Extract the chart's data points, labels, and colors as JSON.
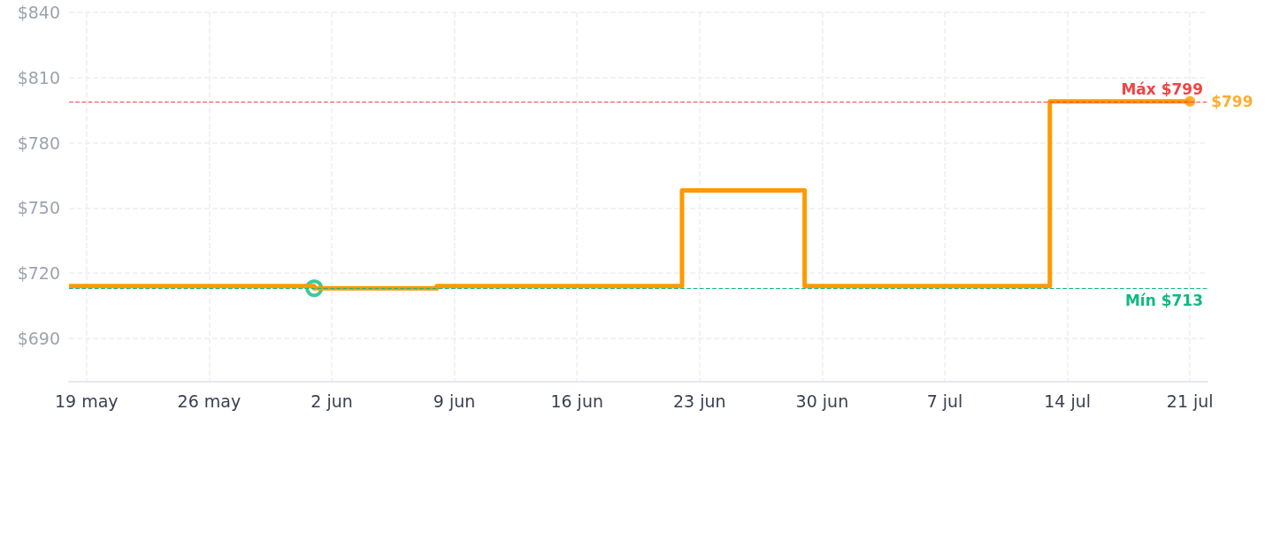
{
  "chart_data": {
    "type": "step",
    "x": [
      "--05-18",
      "--06-01",
      "--06-08",
      "--06-22",
      "--06-29",
      "--07-13",
      "--07-21"
    ],
    "series": [
      {
        "color": "#ff9900",
        "values": [
          714,
          713,
          714,
          758,
          714,
          799,
          799
        ],
        "marker": "none"
      },
      {
        "type": "scatter",
        "x": [
          "--06-01"
        ],
        "color": "#10b981",
        "values": [
          713
        ],
        "marker": "circle"
      },
      {
        "type": "scatter",
        "x": [
          "--07-21"
        ],
        "color": "#ff9900",
        "values": [
          799
        ],
        "marker": "circle",
        "value_labels": [
          "$799"
        ]
      }
    ],
    "xlim": [
      "--05-18",
      "--07-22"
    ],
    "xticks": [
      {
        "value": "--05-19",
        "label": "19 may"
      },
      {
        "value": "--05-26",
        "label": "26 may"
      },
      {
        "value": "--06-02",
        "label": "2 jun"
      },
      {
        "value": "--06-09",
        "label": "9 jun"
      },
      {
        "value": "--06-16",
        "label": "16 jun"
      },
      {
        "value": "--06-23",
        "label": "23 jun"
      },
      {
        "value": "--06-30",
        "label": "30 jun"
      },
      {
        "value": "--07-07",
        "label": "7 jul"
      },
      {
        "value": "--07-14",
        "label": "14 jul"
      },
      {
        "value": "--07-21",
        "label": "21 jul"
      }
    ],
    "ylim": [
      670,
      840
    ],
    "yticks": [
      {
        "value": 690,
        "label": "$690"
      },
      {
        "value": 720,
        "label": "$720"
      },
      {
        "value": 750,
        "label": "$750"
      },
      {
        "value": 780,
        "label": "$780"
      },
      {
        "value": 810,
        "label": "$810"
      },
      {
        "value": 840,
        "label": "$840"
      }
    ],
    "ref_lines": [
      {
        "axis": "y",
        "value": 799,
        "label": "Máx $799",
        "color": "#ef4444",
        "line_style": "dashed"
      },
      {
        "axis": "y",
        "value": 713,
        "label": "Mín $713",
        "color": "#10b981",
        "line_style": "dashed"
      }
    ],
    "grid": true
  }
}
